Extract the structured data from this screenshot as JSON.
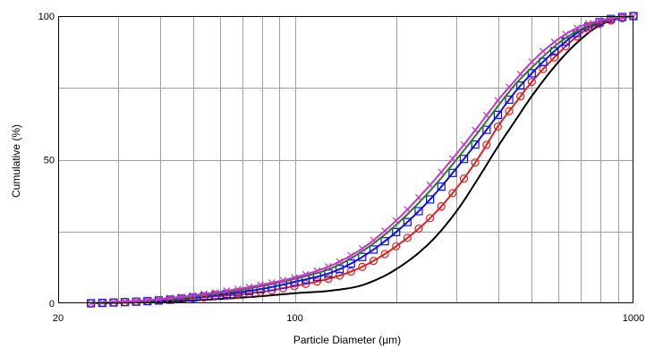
{
  "chart_data": {
    "type": "line",
    "title": "",
    "xlabel": "Particle Diameter (µm)",
    "ylabel": "Cumulative  (%)",
    "x_scale": "log",
    "xlim": [
      20,
      1000
    ],
    "ylim": [
      0,
      100
    ],
    "x_tick_labels": [
      "20",
      "100",
      "1000"
    ],
    "y_tick_labels": [
      "0",
      "50",
      "100"
    ],
    "grid": true,
    "legend": "none",
    "series": [
      {
        "color": "#000000",
        "marker": "none",
        "x": [
          25,
          40,
          60,
          80,
          100,
          130,
          160,
          200,
          250,
          300,
          350,
          400,
          450,
          500,
          600,
          700,
          800,
          900,
          1000
        ],
        "y": [
          0,
          0.5,
          1.5,
          2.5,
          3.5,
          4.5,
          6.5,
          12,
          21,
          32,
          44,
          55,
          64,
          72,
          84,
          92,
          97,
          99,
          100
        ]
      },
      {
        "color": "#e02020",
        "marker": "circle",
        "x": [
          25,
          40,
          60,
          80,
          100,
          130,
          160,
          200,
          250,
          300,
          350,
          400,
          450,
          500,
          600,
          700,
          800,
          900,
          1000
        ],
        "y": [
          0,
          1,
          2.5,
          4,
          6,
          9,
          13,
          20,
          29.5,
          40,
          51,
          62,
          70,
          77,
          87,
          94,
          97.5,
          99,
          100
        ]
      },
      {
        "color": "#1010e0",
        "marker": "square",
        "x": [
          25,
          40,
          60,
          80,
          100,
          130,
          160,
          200,
          250,
          300,
          350,
          400,
          450,
          500,
          600,
          700,
          800,
          900,
          1000
        ],
        "y": [
          0,
          1,
          3,
          5,
          7.5,
          11,
          16.5,
          25,
          36,
          47,
          57,
          66,
          74,
          80,
          89,
          95,
          98,
          99.5,
          100
        ]
      },
      {
        "color": "#208020",
        "marker": "none",
        "x": [
          25,
          40,
          60,
          80,
          100,
          130,
          160,
          200,
          250,
          300,
          350,
          400,
          450,
          500,
          600,
          700,
          800,
          900,
          1000
        ],
        "y": [
          0,
          1.2,
          3.5,
          6,
          8.5,
          12.5,
          18.5,
          27.5,
          39,
          50,
          60,
          69,
          76.5,
          82,
          90.5,
          95.5,
          98.2,
          99.5,
          100
        ]
      },
      {
        "color": "#cc33cc",
        "marker": "x",
        "x": [
          25,
          40,
          60,
          80,
          100,
          130,
          160,
          200,
          250,
          300,
          350,
          400,
          450,
          500,
          600,
          700,
          800,
          900,
          1000
        ],
        "y": [
          0,
          1.5,
          4,
          6.5,
          9,
          13.5,
          19.5,
          29,
          41,
          52,
          62,
          71,
          78,
          84,
          92,
          96.5,
          98.5,
          99.6,
          100
        ]
      }
    ]
  }
}
